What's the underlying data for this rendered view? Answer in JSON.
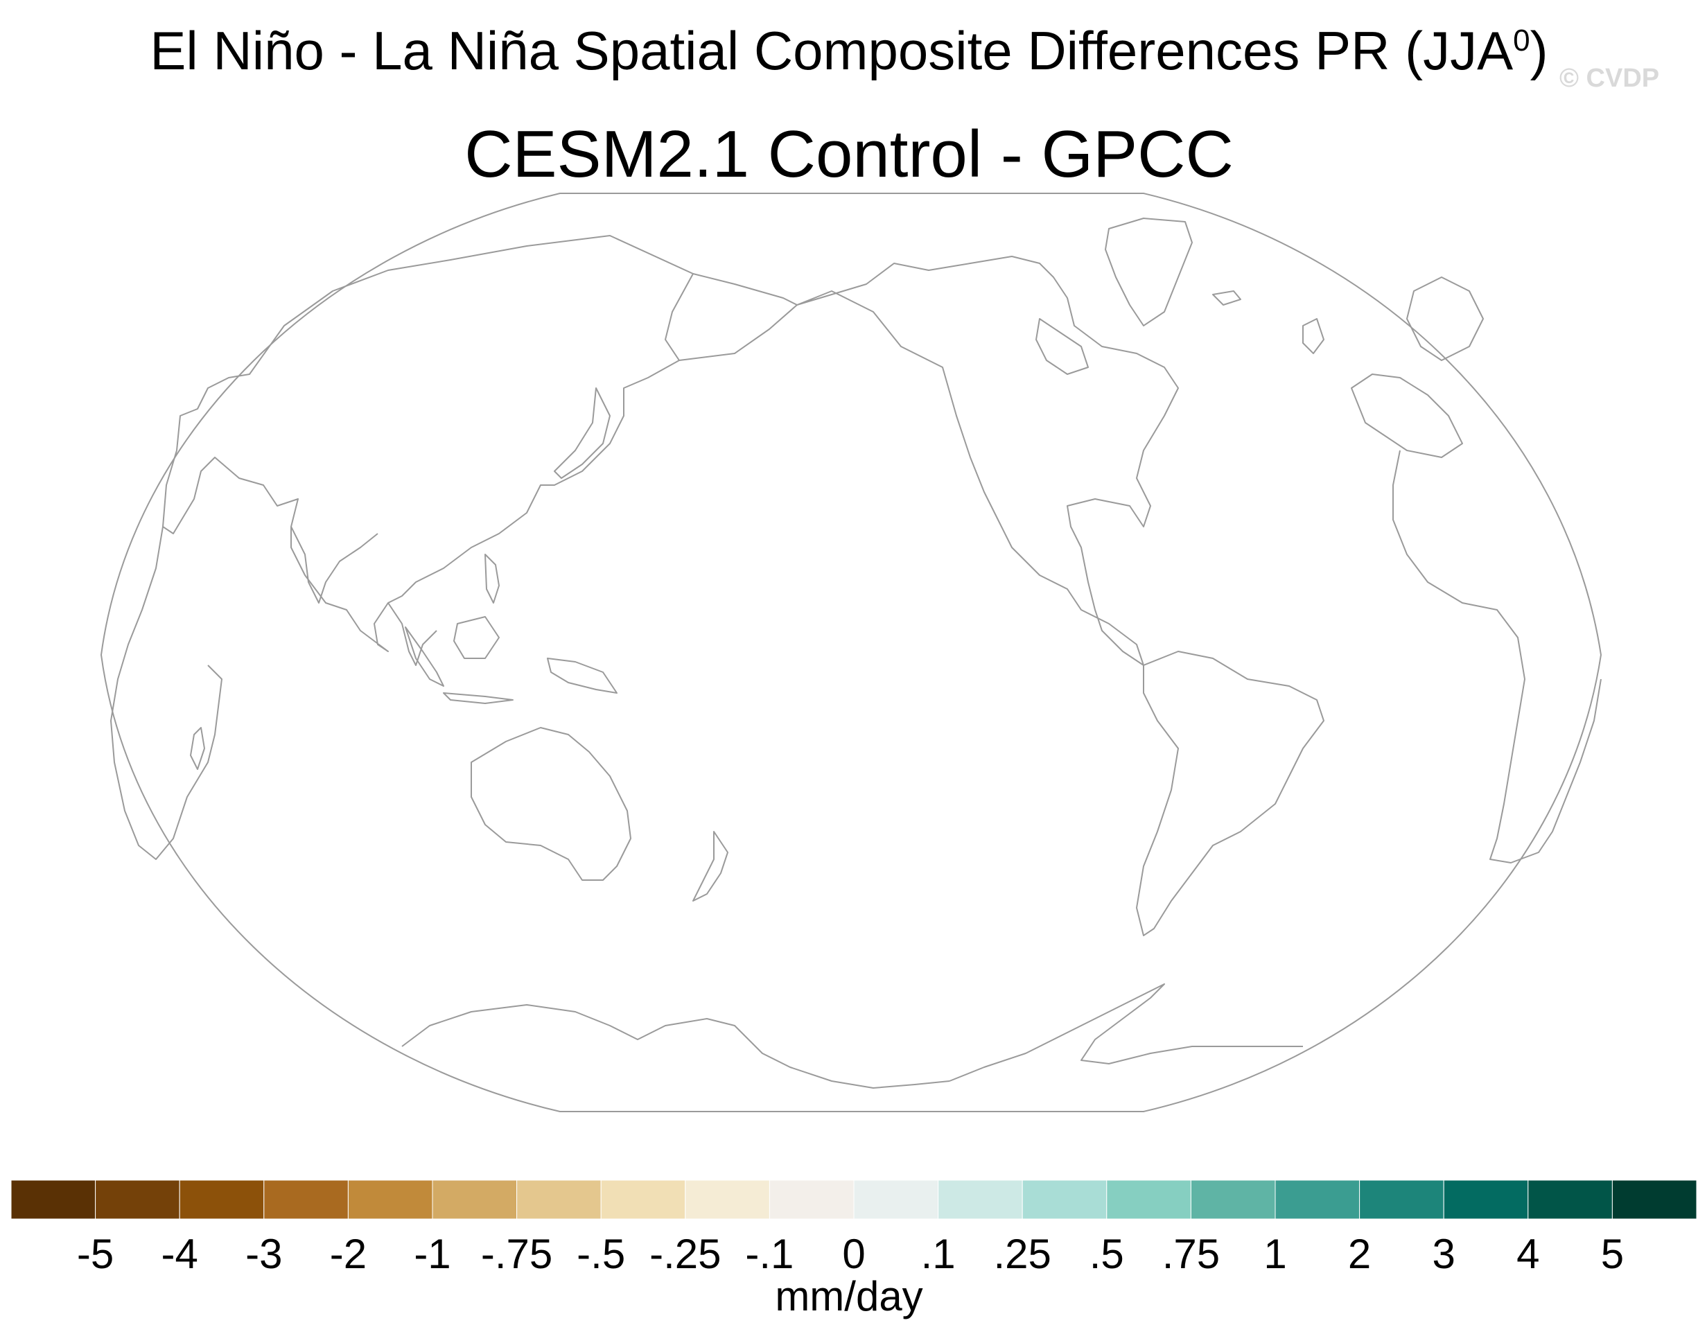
{
  "title": {
    "main": "El Niño - La Niña Spatial Composite Differences PR (JJA",
    "superscript": "0",
    "close": ")",
    "subtitle": "CESM2.1 Control - GPCC",
    "watermark": "© CVDP"
  },
  "map": {
    "projection": "Robinson (Pacific-centered)",
    "fill": "#ffffff",
    "coastline_color": "#9a9a9a"
  },
  "colorbar": {
    "colors": [
      "#5a3105",
      "#744109",
      "#8c510a",
      "#a96a20",
      "#c18a3a",
      "#d3aa64",
      "#e4c78e",
      "#f1dfb5",
      "#f5ecd5",
      "#f3efea",
      "#e9f0ef",
      "#cde9e5",
      "#a9ddd6",
      "#86cfc1",
      "#5fb4a5",
      "#3b9d91",
      "#1d857a",
      "#036b61",
      "#015548",
      "#003c30"
    ],
    "labels": [
      "-5",
      "-4",
      "-3",
      "-2",
      "-1",
      "-.75",
      "-.5",
      "-.25",
      "-.1",
      "0",
      ".1",
      ".25",
      ".5",
      ".75",
      "1",
      "2",
      "3",
      "4",
      "5"
    ],
    "units": "mm/day"
  }
}
